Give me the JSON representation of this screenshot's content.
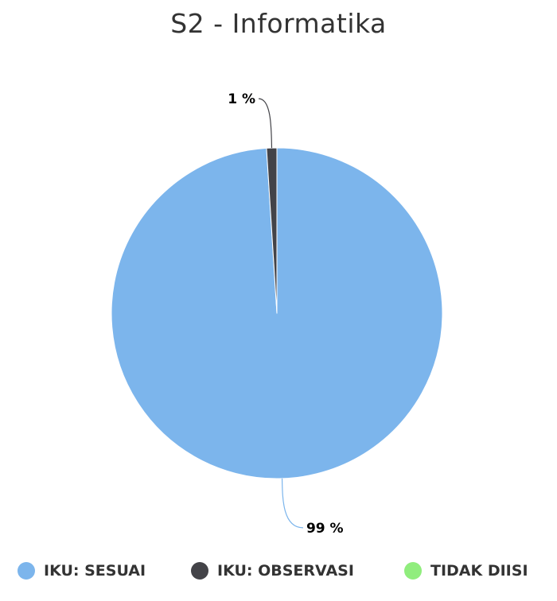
{
  "chart_data": {
    "type": "pie",
    "title": "S2 - Informatika",
    "slices": [
      {
        "label": "IKU: SESUAI",
        "value": 99,
        "display": "99 %",
        "color": "#7cb5ec"
      },
      {
        "label": "IKU: OBSERVASI",
        "value": 1,
        "display": "1 %",
        "color": "#434348"
      },
      {
        "label": "TIDAK DIISI",
        "value": 0,
        "display": "",
        "color": "#90ed7d"
      }
    ],
    "legend_position": "bottom"
  }
}
